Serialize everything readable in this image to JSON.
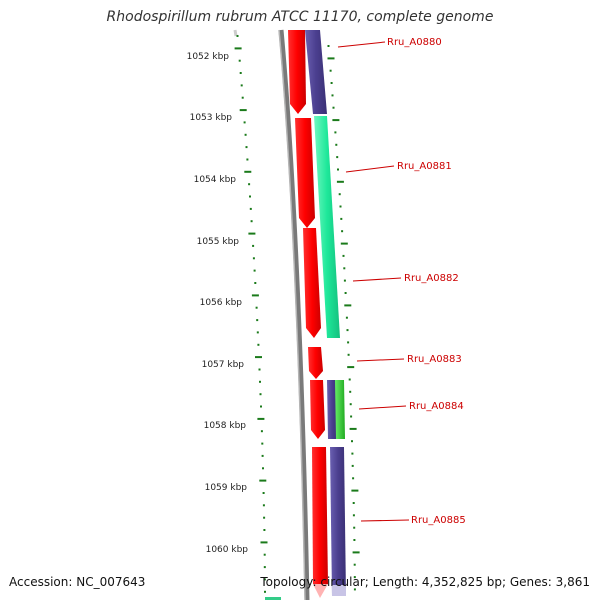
{
  "header": {
    "title": "Rhodospirillum rubrum ATCC 11170, complete genome"
  },
  "footer": {
    "accession": "Accession: NC_007643",
    "topology": "Topology: circular; Length: 4,352,825 bp; Genes: 3,861"
  },
  "ruler": {
    "ticks": [
      {
        "label": "1052 kbp",
        "kbp": 1052
      },
      {
        "label": "1053 kbp",
        "kbp": 1053
      },
      {
        "label": "1054 kbp",
        "kbp": 1054
      },
      {
        "label": "1055 kbp",
        "kbp": 1055
      },
      {
        "label": "1056 kbp",
        "kbp": 1056
      },
      {
        "label": "1057 kbp",
        "kbp": 1057
      },
      {
        "label": "1058 kbp",
        "kbp": 1058
      },
      {
        "label": "1059 kbp",
        "kbp": 1059
      },
      {
        "label": "1060 kbp",
        "kbp": 1060
      }
    ]
  },
  "genes": [
    {
      "label": "Rru_A0880"
    },
    {
      "label": "Rru_A0881"
    },
    {
      "label": "Rru_A0882"
    },
    {
      "label": "Rru_A0883"
    },
    {
      "label": "Rru_A0884"
    },
    {
      "label": "Rru_A0885"
    }
  ],
  "colors": {
    "cds": "#ff0000",
    "gene_blue": "#4b3f8f",
    "gene_green": "#1ee89a",
    "gene_bright_green": "#33cc33",
    "backbone": "#7a7a7a",
    "ruler_ticks": "#1a7a1a",
    "label_text": "#cc0000"
  }
}
